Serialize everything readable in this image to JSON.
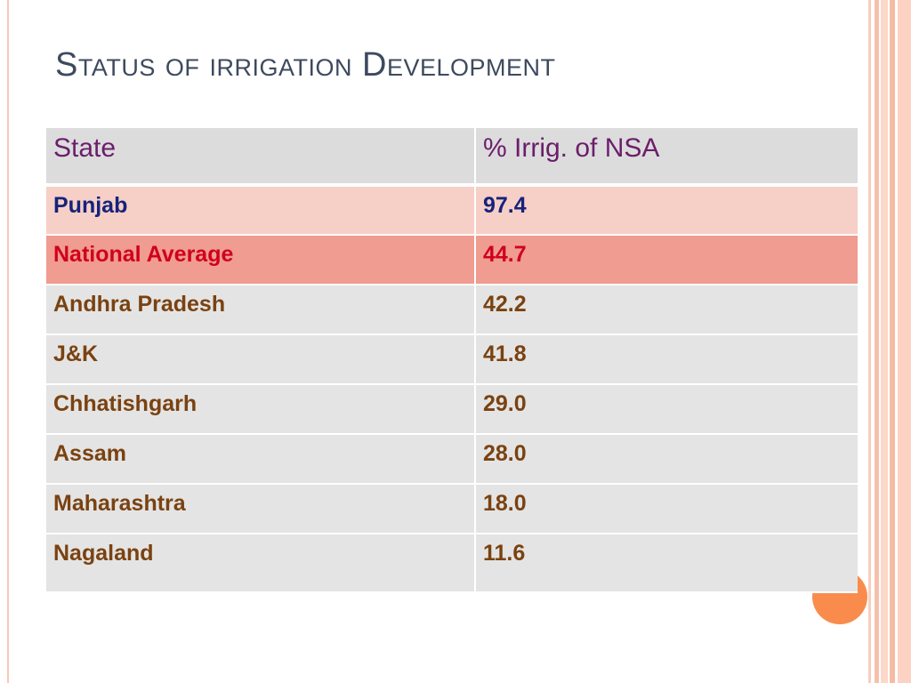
{
  "slide": {
    "title": "Status of irrigation Development"
  },
  "table": {
    "headers": [
      "State",
      "% Irrig. of NSA"
    ],
    "rows": [
      {
        "state": "Punjab",
        "value": "97.4"
      },
      {
        "state": "National Average",
        "value": "44.7"
      },
      {
        "state": "Andhra Pradesh",
        "value": "42.2"
      },
      {
        "state": "J&K",
        "value": "41.8"
      },
      {
        "state": "Chhatishgarh",
        "value": "29.0"
      },
      {
        "state": "Assam",
        "value": "28.0"
      },
      {
        "state": "Maharashtra",
        "value": "18.0"
      },
      {
        "state": "Nagaland",
        "value": "11.6"
      }
    ]
  },
  "colors": {
    "title": "#3d4a5e",
    "header_text": "#6b1e6b",
    "header_bg": "#dcdcdc",
    "row_bg": "#e4e4e4",
    "row_text": "#7a4211",
    "punjab_bg": "#f6cfc7",
    "punjab_text": "#16237a",
    "national_bg": "#f09c90",
    "national_text": "#d0001b",
    "accent_circle": "#f98c4c"
  }
}
